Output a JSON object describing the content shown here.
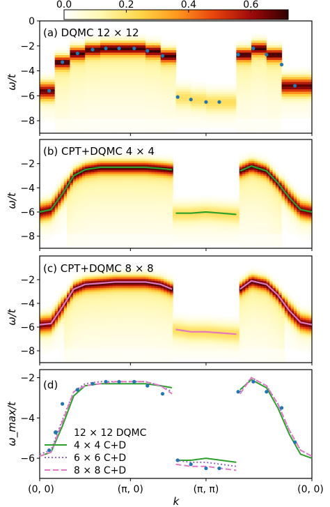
{
  "colorbar": {
    "ticks": [
      "0.0",
      "0.2",
      "0.4",
      "0.6"
    ],
    "tick_values": [
      0.0,
      0.2,
      0.4,
      0.6
    ],
    "range": [
      0.0,
      0.72
    ],
    "colormap": [
      "#ffffff",
      "#fff8b0",
      "#ffd84a",
      "#ff9a1e",
      "#e8440c",
      "#a00a0a",
      "#300000"
    ]
  },
  "colors": {
    "dqmc_points": "#1f77b4",
    "cpt_4x4": "#2ca02c",
    "cpt_8x8": "#e377c2",
    "cd_6x6": "#9467bd"
  },
  "chart_data": [
    {
      "type": "heatmap",
      "panel_label": "(a) DQMC 12 × 12",
      "ylabel": "ω/t",
      "ylim": [
        -9,
        0
      ],
      "yticks": [
        "0",
        "−2",
        "−4",
        "−6",
        "−8"
      ],
      "ytick_values": [
        0,
        -2,
        -4,
        -6,
        -8
      ],
      "series": [
        {
          "name": "12 × 12 DQMC peak",
          "x": [
            0.25,
            0.6,
            1.0,
            1.4,
            1.75,
            2.1,
            2.5,
            2.85,
            3.25,
            3.65,
            4.0,
            4.4,
            4.75,
            5.25,
            5.65,
            6.0,
            6.4,
            6.75
          ],
          "y": [
            -5.6,
            -3.3,
            -2.6,
            -2.3,
            -2.2,
            -2.2,
            -2.2,
            -2.4,
            -2.8,
            -6.1,
            -6.3,
            -6.5,
            -6.5,
            -2.7,
            -2.2,
            -2.7,
            -3.5,
            -5.2
          ]
        }
      ]
    },
    {
      "type": "heatmap",
      "panel_label": "(b) CPT+DQMC 4 × 4",
      "ylabel": "ω/t",
      "ylim": [
        -9,
        0
      ],
      "yticks": [
        "−2",
        "−4",
        "−6",
        "−8"
      ],
      "ytick_values": [
        -2,
        -4,
        -6,
        -8
      ],
      "series": [
        {
          "name": "4 × 4 C+D",
          "segments": [
            {
              "x": [
                0.0,
                0.3,
                0.6,
                0.9,
                1.2,
                1.6,
                2.0,
                2.4,
                2.8,
                3.2,
                3.5
              ],
              "y": [
                -6.0,
                -5.8,
                -4.5,
                -3.0,
                -2.5,
                -2.3,
                -2.3,
                -2.3,
                -2.3,
                -2.4,
                -2.5
              ]
            },
            {
              "x": [
                3.6,
                4.0,
                4.4,
                4.8,
                5.2
              ],
              "y": [
                -6.1,
                -6.1,
                -6.0,
                -6.1,
                -6.2
              ]
            },
            {
              "x": [
                5.3,
                5.6,
                6.0,
                6.3,
                6.6,
                6.9,
                7.2
              ],
              "y": [
                -2.6,
                -2.2,
                -2.6,
                -3.6,
                -4.8,
                -5.8,
                -6.0
              ]
            }
          ]
        }
      ]
    },
    {
      "type": "heatmap",
      "panel_label": "(c) CPT+DQMC 8 × 8",
      "ylabel": "ω/t",
      "ylim": [
        -9,
        0
      ],
      "yticks": [
        "−2",
        "−4",
        "−6",
        "−8"
      ],
      "ytick_values": [
        -2,
        -4,
        -6,
        -8
      ],
      "series": [
        {
          "name": "8 × 8 C+D",
          "segments": [
            {
              "x": [
                0.0,
                0.3,
                0.6,
                0.9,
                1.2,
                1.6,
                2.0,
                2.4,
                2.8,
                3.2,
                3.5
              ],
              "y": [
                -5.8,
                -5.7,
                -4.3,
                -2.8,
                -2.4,
                -2.3,
                -2.2,
                -2.2,
                -2.2,
                -2.4,
                -2.8
              ]
            },
            {
              "x": [
                3.6,
                4.0,
                4.4,
                4.8,
                5.2
              ],
              "y": [
                -6.2,
                -6.4,
                -6.4,
                -6.5,
                -6.6
              ]
            },
            {
              "x": [
                5.3,
                5.6,
                6.0,
                6.3,
                6.6,
                6.9,
                7.2
              ],
              "y": [
                -2.8,
                -2.1,
                -2.4,
                -3.3,
                -4.6,
                -5.6,
                -5.8
              ]
            }
          ]
        }
      ]
    },
    {
      "type": "line",
      "panel_label": "(d)",
      "ylabel": "ω_max/t",
      "xlabel": "k",
      "xticks": [
        "(0, 0)",
        "(π, 0)",
        "(π, π)",
        "(0, 0)"
      ],
      "xtick_values": [
        0,
        2.4,
        4.4,
        7.2
      ],
      "ylim": [
        -7.0,
        -1.6
      ],
      "yticks": [
        "−2",
        "−4",
        "−6"
      ],
      "ytick_values": [
        -2,
        -4,
        -6
      ],
      "legend_position": "bottom-left",
      "series": [
        {
          "name": "12 × 12 DQMC",
          "style": "points",
          "x": [
            0.25,
            0.6,
            1.0,
            1.4,
            1.75,
            2.1,
            2.5,
            2.85,
            3.25,
            3.65,
            4.0,
            4.4,
            4.75,
            5.25,
            5.65,
            6.0,
            6.4,
            6.75
          ],
          "y": [
            -5.6,
            -3.3,
            -2.6,
            -2.3,
            -2.2,
            -2.2,
            -2.2,
            -2.4,
            -2.8,
            -6.1,
            -6.3,
            -6.5,
            -6.5,
            -2.7,
            -2.2,
            -2.7,
            -3.5,
            -5.2
          ]
        },
        {
          "name": "4 × 4 C+D",
          "style": "solid",
          "segments": [
            {
              "x": [
                0.0,
                0.3,
                0.6,
                0.9,
                1.2,
                1.6,
                2.0,
                2.4,
                2.8,
                3.2,
                3.5
              ],
              "y": [
                -5.9,
                -5.7,
                -4.4,
                -2.9,
                -2.4,
                -2.3,
                -2.3,
                -2.3,
                -2.3,
                -2.4,
                -2.5
              ]
            },
            {
              "x": [
                3.6,
                4.0,
                4.4,
                4.8,
                5.2
              ],
              "y": [
                -6.1,
                -6.1,
                -6.0,
                -6.1,
                -6.2
              ]
            },
            {
              "x": [
                5.3,
                5.6,
                6.0,
                6.3,
                6.6,
                6.9,
                7.2
              ],
              "y": [
                -2.6,
                -2.1,
                -2.5,
                -3.5,
                -4.8,
                -5.8,
                -6.0
              ]
            }
          ]
        },
        {
          "name": "6 × 6 C+D",
          "style": "dotted",
          "segments": [
            {
              "x": [
                0.0,
                0.3,
                0.6,
                0.9,
                1.2,
                1.6,
                2.0,
                2.4,
                2.8,
                3.2,
                3.5
              ],
              "y": [
                -5.8,
                -5.6,
                -4.1,
                -2.7,
                -2.3,
                -2.2,
                -2.2,
                -2.2,
                -2.2,
                -2.4,
                -2.7
              ]
            },
            {
              "x": [
                3.6,
                4.0,
                4.4,
                4.8,
                5.2
              ],
              "y": [
                -6.1,
                -6.2,
                -6.2,
                -6.3,
                -6.4
              ]
            },
            {
              "x": [
                5.3,
                5.6,
                6.0,
                6.3,
                6.6,
                6.9,
                7.2
              ],
              "y": [
                -2.7,
                -2.0,
                -2.4,
                -3.3,
                -4.6,
                -5.6,
                -5.9
              ]
            }
          ]
        },
        {
          "name": "8 × 8 C+D",
          "style": "dashed",
          "segments": [
            {
              "x": [
                0.0,
                0.3,
                0.6,
                0.9,
                1.2,
                1.6,
                2.0,
                2.4,
                2.8,
                3.2,
                3.5
              ],
              "y": [
                -5.9,
                -5.7,
                -4.2,
                -2.7,
                -2.4,
                -2.3,
                -2.2,
                -2.2,
                -2.2,
                -2.4,
                -2.8
              ]
            },
            {
              "x": [
                3.6,
                4.0,
                4.4,
                4.8,
                5.2
              ],
              "y": [
                -6.3,
                -6.4,
                -6.4,
                -6.5,
                -6.6
              ]
            },
            {
              "x": [
                5.3,
                5.6,
                6.0,
                6.3,
                6.6,
                6.9,
                7.2
              ],
              "y": [
                -2.8,
                -2.0,
                -2.4,
                -3.3,
                -4.6,
                -5.6,
                -5.9
              ]
            }
          ]
        }
      ]
    }
  ]
}
